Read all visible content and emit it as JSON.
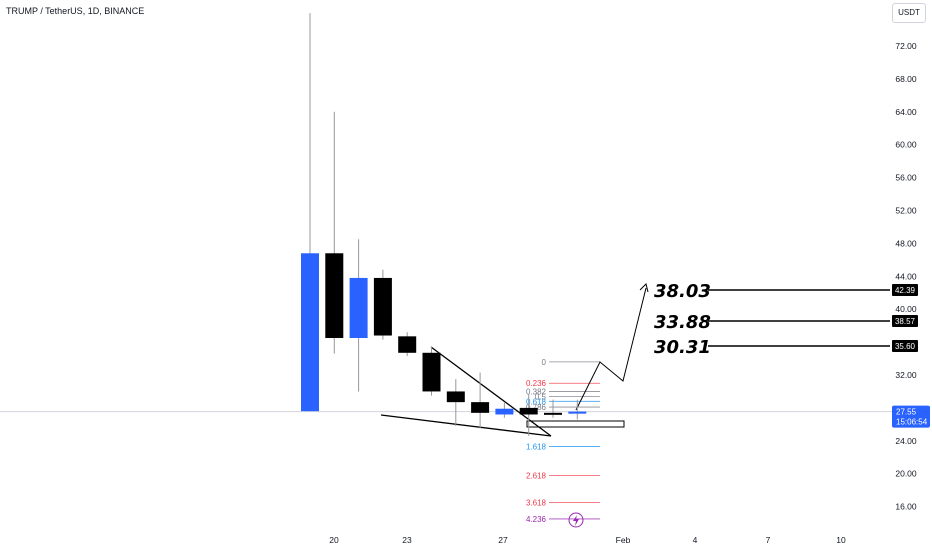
{
  "header": {
    "title": "TRUMP / TetherUS, 1D, BINANCE",
    "currency": "USDT"
  },
  "colors": {
    "up": "#2962ff",
    "down": "#000000",
    "wick": "#9598a1",
    "current_price": "#2962ff",
    "fib_red": "#f23645",
    "fib_blue": "#2196f3",
    "fib_gray": "#787b86",
    "fib_purple": "#9c27b0"
  },
  "current_price": {
    "price_label": "27.55",
    "countdown": "15:06:54",
    "value": 27.55
  },
  "targets": [
    {
      "label": "38.03",
      "badge": "42.39",
      "level": 42.39
    },
    {
      "label": "33.88",
      "badge": "38.57",
      "level": 38.57
    },
    {
      "label": "30.31",
      "badge": "35.60",
      "level": 35.6
    }
  ],
  "fib_labels": [
    {
      "text": "0",
      "price": 33.6,
      "color_key": "fib_gray"
    },
    {
      "text": "0.236",
      "price": 31.0,
      "color_key": "fib_red"
    },
    {
      "text": "0.382",
      "price": 30.0,
      "color_key": "fib_gray"
    },
    {
      "text": "0.5",
      "price": 29.4,
      "color_key": "fib_gray"
    },
    {
      "text": "0.618",
      "price": 28.8,
      "color_key": "fib_blue"
    },
    {
      "text": "0.786",
      "price": 28.1,
      "color_key": "fib_gray"
    },
    {
      "text": "1.618",
      "price": 23.3,
      "color_key": "fib_blue"
    },
    {
      "text": "2.618",
      "price": 19.8,
      "color_key": "fib_red"
    },
    {
      "text": "3.618",
      "price": 16.5,
      "color_key": "fib_red"
    },
    {
      "text": "4.236",
      "price": 14.5,
      "color_key": "fib_purple"
    }
  ],
  "chart_data": {
    "type": "candlestick",
    "ylim": [
      12,
      76
    ],
    "y_ticks": [
      "16.00",
      "20.00",
      "24.00",
      "32.00",
      "40.00",
      "44.00",
      "48.00",
      "52.00",
      "56.00",
      "60.00",
      "64.00",
      "68.00",
      "72.00"
    ],
    "x_ticks": [
      "20",
      "23",
      "27",
      "Feb",
      "4",
      "7",
      "10"
    ],
    "candles": [
      {
        "date": "Jan 18",
        "open": 27.6,
        "high": 76.0,
        "low": 27.6,
        "close": 46.8
      },
      {
        "date": "Jan 19",
        "open": 46.8,
        "high": 64.0,
        "low": 34.6,
        "close": 36.5
      },
      {
        "date": "Jan 20",
        "open": 36.5,
        "high": 48.5,
        "low": 30.0,
        "close": 43.8
      },
      {
        "date": "Jan 21",
        "open": 43.8,
        "high": 44.8,
        "low": 36.3,
        "close": 36.8
      },
      {
        "date": "Jan 22",
        "open": 36.7,
        "high": 37.2,
        "low": 34.3,
        "close": 34.7
      },
      {
        "date": "Jan 23",
        "open": 34.7,
        "high": 35.5,
        "low": 29.5,
        "close": 30.0
      },
      {
        "date": "Jan 24",
        "open": 30.0,
        "high": 31.5,
        "low": 25.8,
        "close": 28.7
      },
      {
        "date": "Jan 25",
        "open": 28.7,
        "high": 32.3,
        "low": 25.5,
        "close": 27.4
      },
      {
        "date": "Jan 26",
        "open": 27.2,
        "high": 28.6,
        "low": 26.8,
        "close": 27.9
      },
      {
        "date": "Jan 27",
        "open": 28.0,
        "high": 29.7,
        "low": 24.6,
        "close": 27.2
      },
      {
        "date": "Jan 28",
        "open": 27.4,
        "high": 29.0,
        "low": 26.8,
        "close": 27.3
      },
      {
        "date": "Jan 29",
        "open": 27.3,
        "high": 29.0,
        "low": 26.6,
        "close": 27.55
      }
    ]
  }
}
